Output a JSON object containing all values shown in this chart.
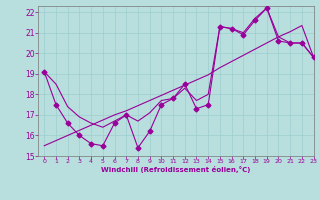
{
  "x": [
    0,
    1,
    2,
    3,
    4,
    5,
    6,
    7,
    8,
    9,
    10,
    11,
    12,
    13,
    14,
    15,
    16,
    17,
    18,
    19,
    20,
    21,
    22,
    23
  ],
  "y_main": [
    19.1,
    17.5,
    16.6,
    16.0,
    15.6,
    15.5,
    16.6,
    17.0,
    15.4,
    16.2,
    17.5,
    17.8,
    18.5,
    17.3,
    17.5,
    21.3,
    21.2,
    20.9,
    21.6,
    22.2,
    20.6,
    20.5,
    20.5,
    19.8
  ],
  "y_trend1": [
    15.5,
    15.75,
    16.0,
    16.25,
    16.5,
    16.75,
    17.0,
    17.2,
    17.45,
    17.7,
    17.95,
    18.2,
    18.45,
    18.7,
    18.95,
    19.3,
    19.6,
    19.9,
    20.2,
    20.5,
    20.8,
    21.05,
    21.35,
    19.8
  ],
  "y_trend2": [
    19.1,
    18.5,
    17.4,
    16.9,
    16.6,
    16.4,
    16.7,
    17.0,
    16.7,
    17.1,
    17.7,
    17.8,
    18.3,
    17.7,
    18.0,
    21.3,
    21.2,
    21.0,
    21.7,
    22.2,
    20.8,
    20.5,
    20.5,
    19.8
  ],
  "xlim": [
    -0.5,
    23
  ],
  "ylim": [
    15,
    22.3
  ],
  "yticks": [
    15,
    16,
    17,
    18,
    19,
    20,
    21,
    22
  ],
  "xticks": [
    0,
    1,
    2,
    3,
    4,
    5,
    6,
    7,
    8,
    9,
    10,
    11,
    12,
    13,
    14,
    15,
    16,
    17,
    18,
    19,
    20,
    21,
    22,
    23
  ],
  "xlabel": "Windchill (Refroidissement éolien,°C)",
  "line_color": "#990099",
  "bg_color": "#b8dede",
  "grid_color": "#9ecece",
  "marker": "D",
  "marker_size": 2.5,
  "line_width": 0.8,
  "title_color": "#660066"
}
